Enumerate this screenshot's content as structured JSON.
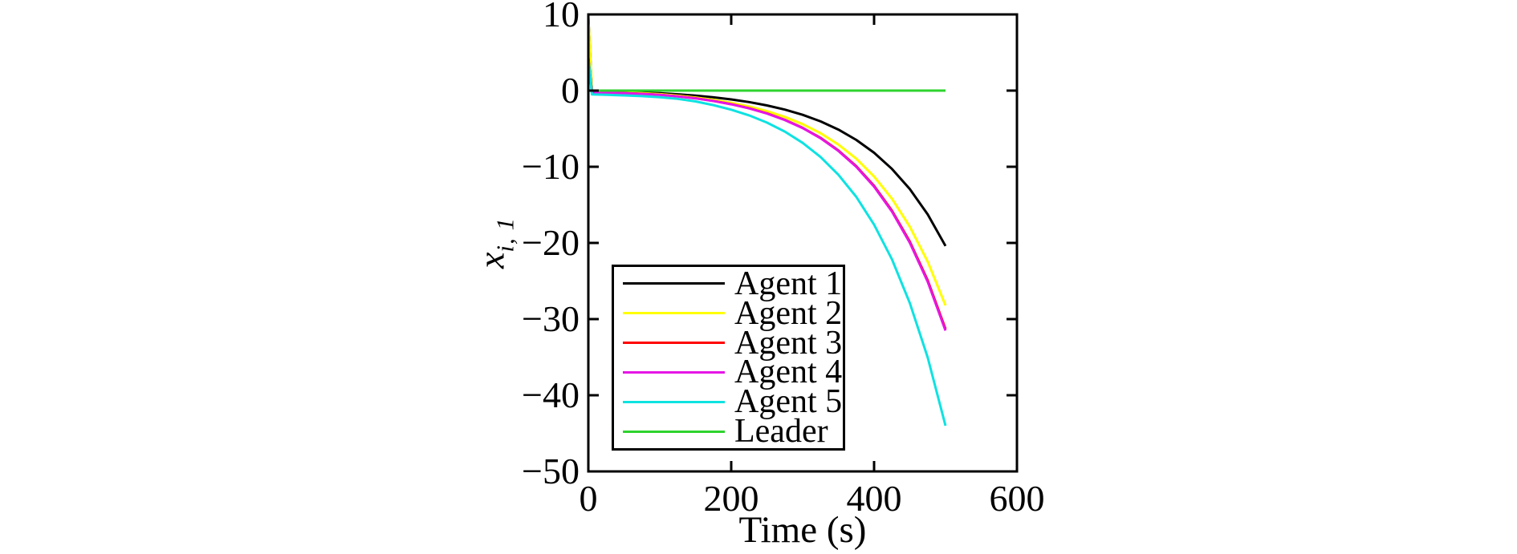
{
  "figure": {
    "background_color": "#ffffff",
    "axis_color": "#000000"
  },
  "chart_data": {
    "type": "line",
    "title": "",
    "xlabel": "Time (s)",
    "ylabel": {
      "base": "x",
      "subscript": "i, 1"
    },
    "xlim": [
      0,
      600
    ],
    "ylim": [
      -50,
      10
    ],
    "grid": false,
    "legend_position": "lower-left-inside",
    "x_ticks": [
      {
        "v": 0,
        "label": "0"
      },
      {
        "v": 200,
        "label": "200"
      },
      {
        "v": 400,
        "label": "400"
      },
      {
        "v": 600,
        "label": "600"
      }
    ],
    "y_ticks": [
      {
        "v": 10,
        "label": "10"
      },
      {
        "v": 0,
        "label": "0"
      },
      {
        "v": -10,
        "label": "−10"
      },
      {
        "v": -20,
        "label": "−20"
      },
      {
        "v": -30,
        "label": "−30"
      },
      {
        "v": -40,
        "label": "−40"
      },
      {
        "v": -50,
        "label": "−50"
      }
    ],
    "x": [
      0,
      5,
      25,
      50,
      75,
      100,
      125,
      150,
      175,
      200,
      225,
      250,
      275,
      300,
      325,
      350,
      375,
      400,
      425,
      450,
      475,
      500
    ],
    "series": [
      {
        "name": "Agent 1",
        "color": "#000000",
        "y": [
          9.6,
          -0.15,
          -0.18,
          -0.22,
          -0.28,
          -0.35,
          -0.48,
          -0.65,
          -0.88,
          -1.16,
          -1.51,
          -1.95,
          -2.49,
          -3.18,
          -4.04,
          -5.12,
          -6.47,
          -8.16,
          -10.28,
          -12.93,
          -16.25,
          -20.4
        ]
      },
      {
        "name": "Agent 2",
        "color": "#ffff00",
        "y": [
          9.6,
          -0.2,
          -0.23,
          -0.28,
          -0.35,
          -0.46,
          -0.66,
          -0.91,
          -1.21,
          -1.6,
          -2.08,
          -2.69,
          -3.45,
          -4.4,
          -5.59,
          -7.08,
          -8.94,
          -11.28,
          -14.2,
          -17.87,
          -22.46,
          -28.2
        ]
      },
      {
        "name": "Agent 3",
        "color": "#ff0000",
        "y": [
          4.3,
          -0.25,
          -0.28,
          -0.33,
          -0.42,
          -0.55,
          -0.75,
          -1.0,
          -1.35,
          -1.77,
          -2.31,
          -2.98,
          -3.83,
          -4.88,
          -6.2,
          -7.85,
          -9.92,
          -12.51,
          -15.76,
          -19.82,
          -24.91,
          -31.3
        ]
      },
      {
        "name": "Agent 4",
        "color": "#e516e5",
        "y": [
          4.3,
          -0.25,
          -0.29,
          -0.34,
          -0.43,
          -0.56,
          -0.76,
          -1.02,
          -1.37,
          -1.8,
          -2.34,
          -3.01,
          -3.86,
          -4.92,
          -6.25,
          -7.92,
          -10.0,
          -12.61,
          -15.88,
          -19.97,
          -25.09,
          -31.5
        ]
      },
      {
        "name": "Agent 5",
        "color": "#0ee2e2",
        "y": [
          4.3,
          -0.5,
          -0.56,
          -0.63,
          -0.73,
          -0.87,
          -1.08,
          -1.42,
          -1.9,
          -2.5,
          -3.25,
          -4.2,
          -5.38,
          -6.86,
          -8.72,
          -11.04,
          -13.95,
          -17.6,
          -22.16,
          -27.88,
          -35.04,
          -44.0
        ]
      },
      {
        "name": "Leader",
        "color": "#2ed32e",
        "x_override": [
          0,
          500
        ],
        "y": [
          0,
          0
        ]
      }
    ]
  }
}
